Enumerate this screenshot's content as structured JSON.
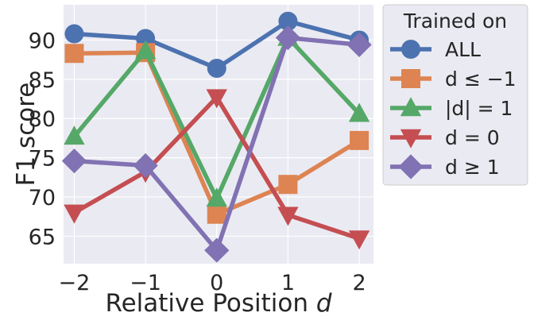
{
  "chart_data": {
    "type": "line",
    "title": "",
    "xlabel": "Relative Position ",
    "xlabel_var": "d",
    "ylabel": "F1 score",
    "x": [
      -2,
      -1,
      0,
      1,
      2
    ],
    "x_tick_labels": [
      "−2",
      "−1",
      "0",
      "1",
      "2"
    ],
    "y_ticks": [
      65,
      70,
      75,
      80,
      85,
      90
    ],
    "xlim": [
      -2.15,
      2.2
    ],
    "ylim": [
      61.5,
      94.5
    ],
    "grid": true,
    "legend": {
      "title": "Trained on",
      "placement": "outside-right"
    },
    "series": [
      {
        "name": "ALL",
        "color": "#4c72b0",
        "marker": "circle",
        "values": [
          90.8,
          90.2,
          86.4,
          92.4,
          90.0
        ]
      },
      {
        "name": "d ≤ −1",
        "color": "#dd8452",
        "marker": "square",
        "values": [
          88.3,
          88.4,
          67.8,
          71.6,
          77.2
        ]
      },
      {
        "name": "|d| = 1",
        "color": "#55a868",
        "marker": "triangle-up",
        "values": [
          77.7,
          88.6,
          69.8,
          90.3,
          80.6
        ]
      },
      {
        "name": "d = 0",
        "color": "#c44e52",
        "marker": "triangle-down",
        "values": [
          68.0,
          73.2,
          82.7,
          67.7,
          64.7
        ]
      },
      {
        "name": "d ≥ 1",
        "color": "#8172b3",
        "marker": "diamond",
        "values": [
          74.6,
          74.0,
          63.2,
          90.3,
          89.4
        ]
      }
    ]
  }
}
